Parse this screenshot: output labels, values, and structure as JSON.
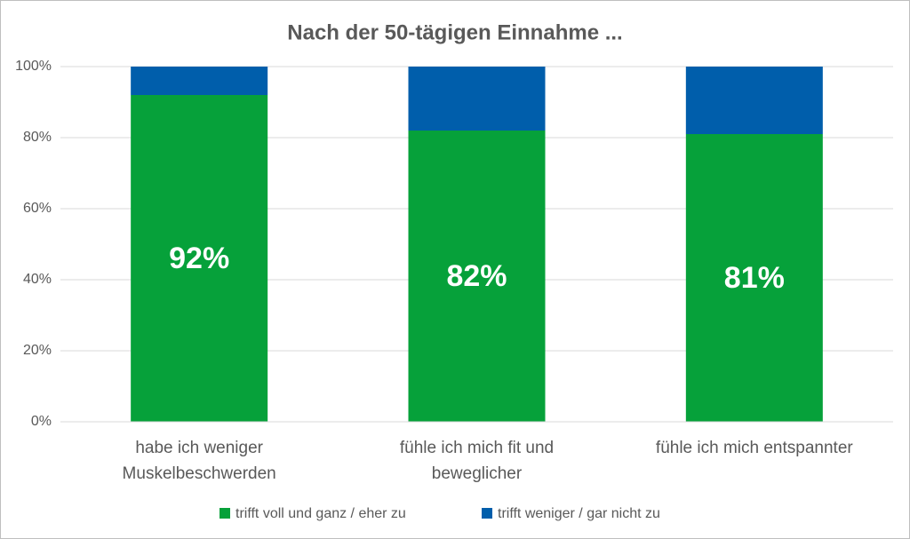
{
  "chart_data": {
    "type": "stacked_bar",
    "title": "Nach der 50-tägigen Einnahme ...",
    "categories": [
      "habe ich weniger\nMuskelbeschwerden",
      "fühle ich mich fit und\nbeweglicher",
      "fühle ich mich entspannter"
    ],
    "series": [
      {
        "name": "trifft voll und ganz / eher zu",
        "color": "#06a13a",
        "values": [
          92,
          82,
          81
        ],
        "value_labels": [
          "92%",
          "82%",
          "81%"
        ]
      },
      {
        "name": "trifft weniger / gar nicht zu",
        "color": "#005eab",
        "values": [
          8,
          18,
          19
        ]
      }
    ],
    "ylim": [
      0,
      100
    ],
    "yticks": [
      {
        "value": 0,
        "label": "0%"
      },
      {
        "value": 20,
        "label": "20%"
      },
      {
        "value": 40,
        "label": "40%"
      },
      {
        "value": 60,
        "label": "60%"
      },
      {
        "value": 80,
        "label": "80%"
      },
      {
        "value": 100,
        "label": "100%"
      }
    ],
    "grid": true,
    "legend": "bottom"
  }
}
